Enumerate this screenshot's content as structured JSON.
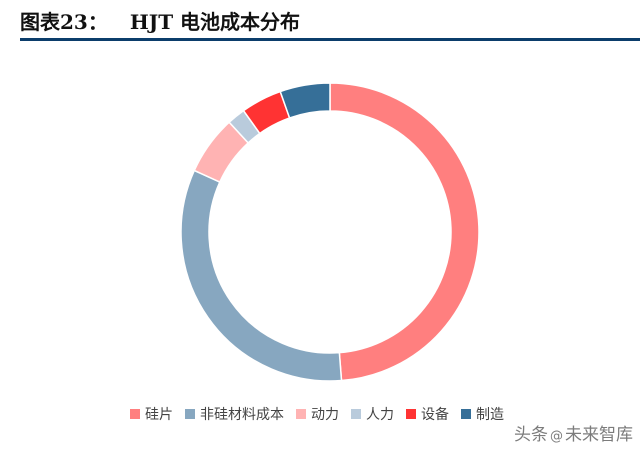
{
  "header": {
    "figure_label": "图表23：",
    "title_text": "HJT 电池成本分布"
  },
  "chart_data": {
    "type": "pie",
    "style": "donut",
    "categories": [
      "硅片",
      "非硅材料成本",
      "动力",
      "人力",
      "设备",
      "制造"
    ],
    "values": [
      49.5,
      33.5,
      6.5,
      2.0,
      4.5,
      5.5
    ],
    "colors": [
      "#ff7f7f",
      "#87a7c0",
      "#ffb3b3",
      "#b9cbdc",
      "#ff3333",
      "#366f98"
    ],
    "start_angle_deg": 0,
    "direction": "clockwise",
    "legend_position": "bottom"
  },
  "watermark": {
    "prefix": "头条",
    "at": "@",
    "name": "未来智库"
  }
}
